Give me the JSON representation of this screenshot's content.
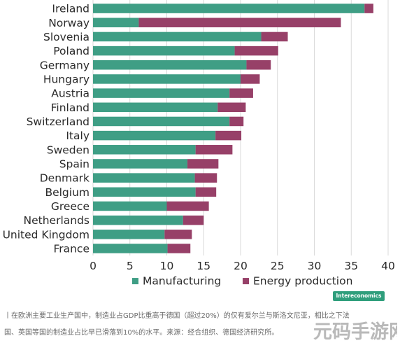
{
  "chart_data": {
    "type": "bar",
    "orientation": "horizontal",
    "stacked": true,
    "categories": [
      "Ireland",
      "Norway",
      "Slovenia",
      "Poland",
      "Germany",
      "Hungary",
      "Austria",
      "Finland",
      "Switzerland",
      "Italy",
      "Sweden",
      "Spain",
      "Denmark",
      "Belgium",
      "Greece",
      "Netherlands",
      "United Kingdom",
      "France"
    ],
    "series": [
      {
        "name": "Manufacturing",
        "color": "#3f9e85",
        "values": [
          36.8,
          6.2,
          22.8,
          19.2,
          20.8,
          20.0,
          18.5,
          16.9,
          18.5,
          16.6,
          13.9,
          12.8,
          13.8,
          13.9,
          10.0,
          12.2,
          9.7,
          10.1
        ]
      },
      {
        "name": "Energy production",
        "color": "#974068",
        "values": [
          1.2,
          27.4,
          3.6,
          5.9,
          3.3,
          2.6,
          3.2,
          3.8,
          1.9,
          3.5,
          5.0,
          4.2,
          3.0,
          2.8,
          5.7,
          2.8,
          3.7,
          3.1
        ]
      }
    ],
    "xlim": [
      0,
      40
    ],
    "xticks": [
      "0",
      "5",
      "10",
      "15",
      "20",
      "25",
      "30",
      "35",
      "40"
    ],
    "grid": "x",
    "legend": "bottom-center",
    "title": "",
    "xlabel": "",
    "ylabel": ""
  },
  "brand": "Intereconomics",
  "caption": {
    "line1": "丨在欧洲主要工业生产国中，制造业占GDP比重高于德国（超过20%）的仅有爱尔兰与斯洛文尼亚，相比之下法",
    "line2": "国、英国等国的制造业占比早已滑落到10%的水平。来源：经合组织、德国经济研究所。"
  },
  "watermark": "元码手游网"
}
